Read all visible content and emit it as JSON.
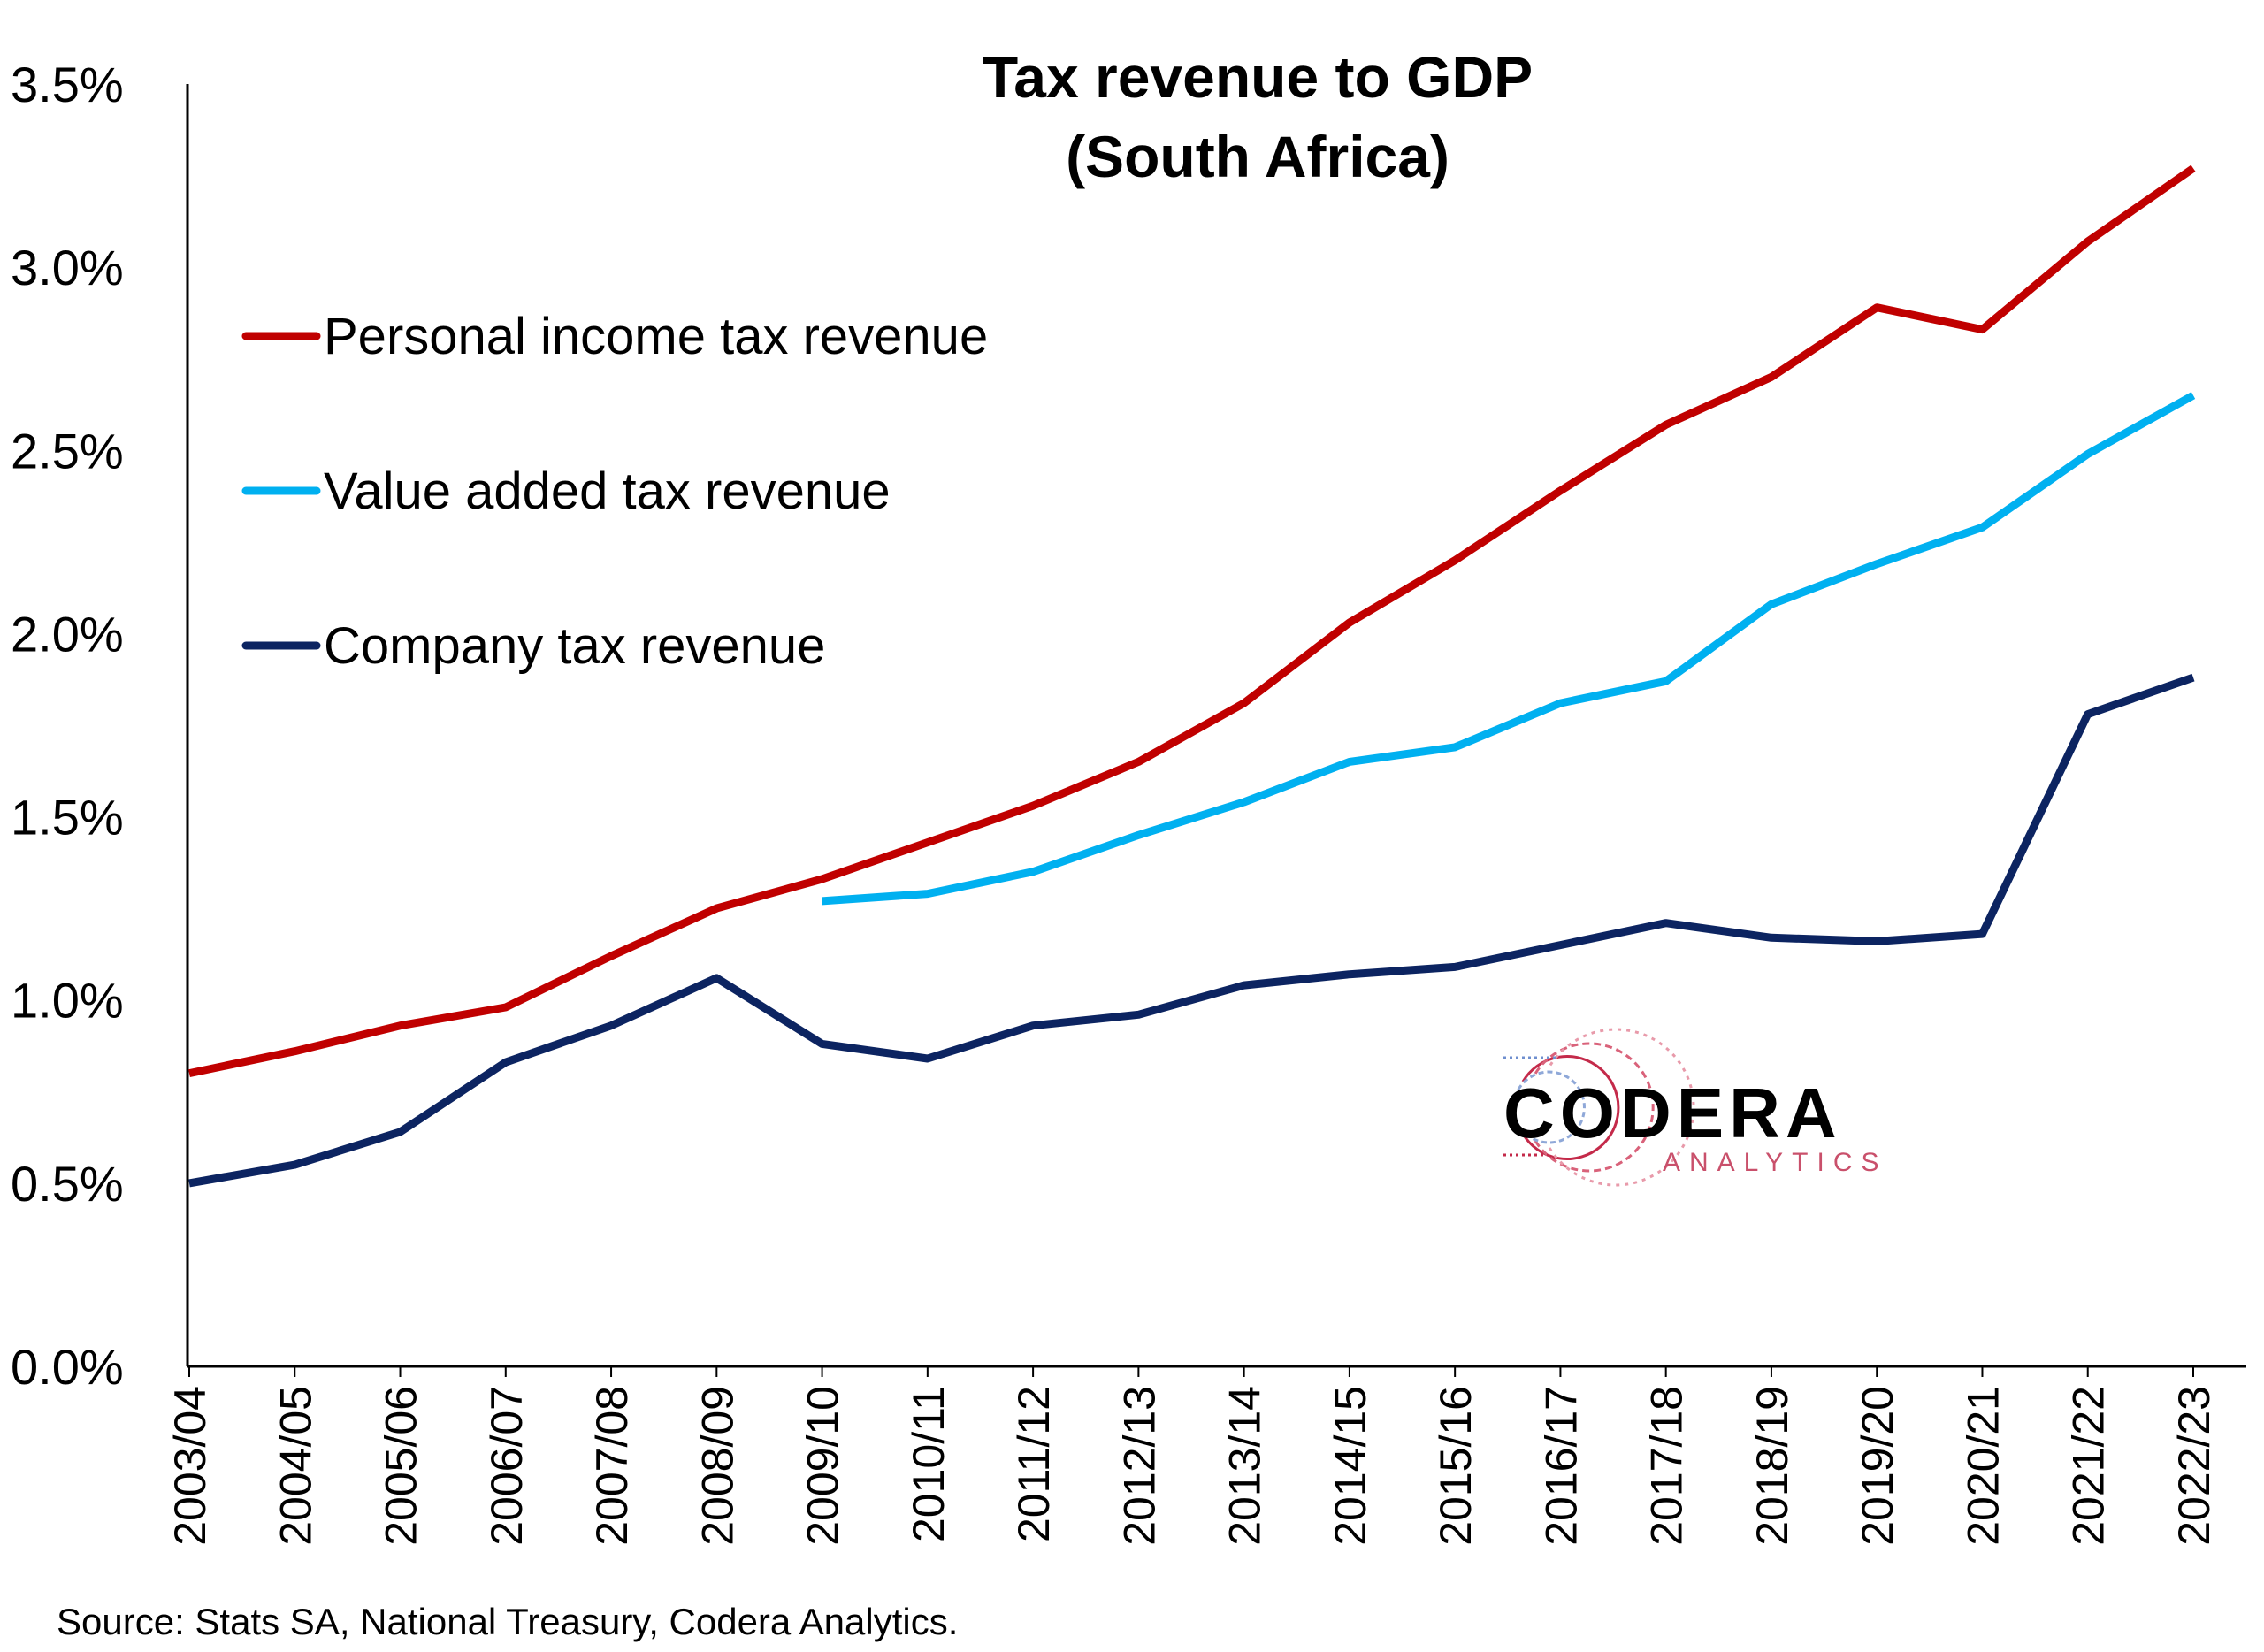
{
  "chart_data": {
    "type": "line",
    "title": "Tax revenue to GDP",
    "subtitle": "(South Africa)",
    "xlabel": "",
    "ylabel": "",
    "ylim": [
      0,
      3.5
    ],
    "yticks": [
      "0.0%",
      "0.5%",
      "1.0%",
      "1.5%",
      "2.0%",
      "2.5%",
      "3.0%",
      "3.5%"
    ],
    "grid": false,
    "legend_position": "top-left",
    "categories": [
      "2003/04",
      "2004/05",
      "2005/06",
      "2006/07",
      "2007/08",
      "2008/09",
      "2009/10",
      "2010/11",
      "2011/12",
      "2012/13",
      "2013/14",
      "2014/15",
      "2015/16",
      "2016/17",
      "2017/18",
      "2018/19",
      "2019/20",
      "2020/21",
      "2021/22",
      "2022/23"
    ],
    "series": [
      {
        "name": "Personal income tax revenue",
        "color": "#C00000",
        "values": [
          0.8,
          0.86,
          0.93,
          0.98,
          1.12,
          1.25,
          1.33,
          1.43,
          1.53,
          1.65,
          1.81,
          2.03,
          2.2,
          2.39,
          2.57,
          2.7,
          2.89,
          2.83,
          3.07,
          3.27
        ]
      },
      {
        "name": "Value added tax revenue",
        "color": "#00B0F0",
        "values": [
          null,
          null,
          null,
          null,
          null,
          null,
          1.27,
          1.29,
          1.35,
          1.45,
          1.54,
          1.65,
          1.69,
          1.81,
          1.87,
          2.08,
          2.19,
          2.29,
          2.49,
          2.65
        ]
      },
      {
        "name": "Company tax revenue",
        "color": "#0C2461",
        "values": [
          0.5,
          0.55,
          0.64,
          0.83,
          0.93,
          1.06,
          0.88,
          0.84,
          0.93,
          0.96,
          1.04,
          1.07,
          1.09,
          1.15,
          1.21,
          1.17,
          1.16,
          1.18,
          1.78,
          1.88
        ]
      }
    ]
  },
  "logo": {
    "name": "CODERA",
    "tagline": "ANALYTICS"
  },
  "source": "Source: Stats SA, National Treasury, Codera Analytics."
}
